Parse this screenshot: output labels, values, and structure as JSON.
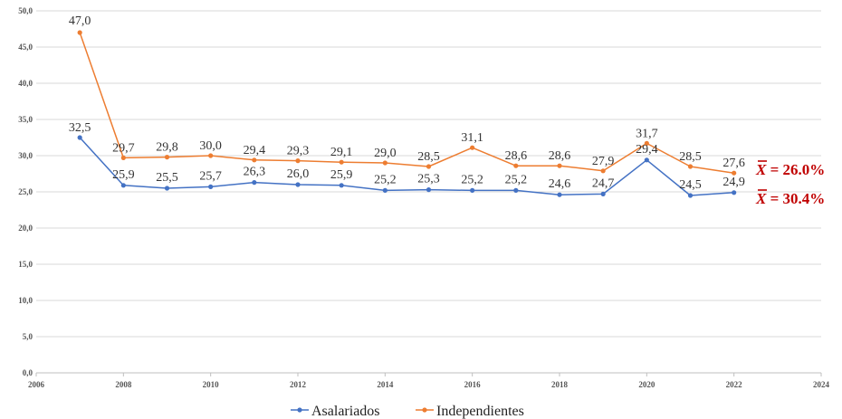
{
  "chart_data": {
    "type": "line",
    "x_ticks": [
      2006,
      2008,
      2010,
      2012,
      2014,
      2016,
      2018,
      2020,
      2022,
      2024
    ],
    "xlim": [
      2006,
      2024
    ],
    "ylim": [
      0,
      50
    ],
    "y_ticks": [
      "0,0",
      "5,0",
      "10,0",
      "15,0",
      "20,0",
      "25,0",
      "30,0",
      "35,0",
      "40,0",
      "45,0",
      "50,0"
    ],
    "x": [
      2007,
      2008,
      2009,
      2010,
      2011,
      2012,
      2013,
      2014,
      2015,
      2016,
      2017,
      2018,
      2019,
      2020,
      2021,
      2022
    ],
    "grid": "horizontal",
    "legend_position": "bottom",
    "series": [
      {
        "name": "Asalariados",
        "color": "#4472c4",
        "values": [
          32.5,
          25.9,
          25.5,
          25.7,
          26.3,
          26.0,
          25.9,
          25.2,
          25.3,
          25.2,
          25.2,
          24.6,
          24.7,
          29.4,
          24.5,
          24.9
        ],
        "labels": [
          "32,5",
          "25,9",
          "25,5",
          "25,7",
          "26,3",
          "26,0",
          "25,9",
          "25,2",
          "25,3",
          "25,2",
          "25,2",
          "24,6",
          "24,7",
          "29,4",
          "24,5",
          "24,9"
        ]
      },
      {
        "name": "Independientes",
        "color": "#ed7d31",
        "values": [
          47.0,
          29.7,
          29.8,
          30.0,
          29.4,
          29.3,
          29.1,
          29.0,
          28.5,
          31.1,
          28.6,
          28.6,
          27.9,
          31.7,
          28.5,
          27.6
        ],
        "labels": [
          "47,0",
          "29,7",
          "29,8",
          "30,0",
          "29,4",
          "29,3",
          "29,1",
          "29,0",
          "28,5",
          "31,1",
          "28,6",
          "28,6",
          "27,9",
          "31,7",
          "28,5",
          "27,6"
        ]
      }
    ],
    "annotations": [
      {
        "symbol": "X",
        "text": " = 26.0%",
        "color": "#c00000"
      },
      {
        "symbol": "X",
        "text": " = 30.4%",
        "color": "#c00000"
      }
    ]
  }
}
